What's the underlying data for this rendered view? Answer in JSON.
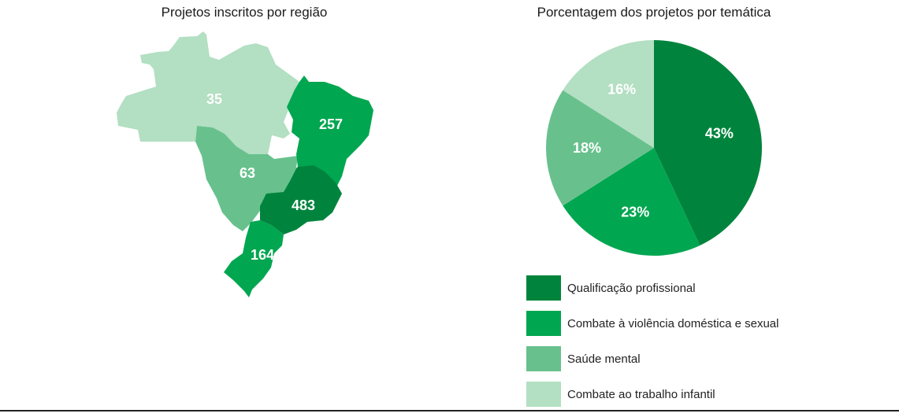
{
  "map": {
    "title": "Projetos inscritos por região",
    "regions": [
      {
        "name": "Norte",
        "value": "35",
        "color": "#b3dfc2"
      },
      {
        "name": "Nordeste",
        "value": "257",
        "color": "#00a650"
      },
      {
        "name": "Centro-Oeste",
        "value": "63",
        "color": "#68c18d"
      },
      {
        "name": "Sudeste",
        "value": "483",
        "color": "#00843d"
      },
      {
        "name": "Sul",
        "value": "164",
        "color": "#00a650"
      }
    ]
  },
  "chart_data": {
    "type": "pie",
    "title": "Porcentagem dos projetos por temática",
    "categories": [
      "Qualificação profissional",
      "Combate à violência doméstica e sexual",
      "Saúde mental",
      "Combate ao trabalho infantil"
    ],
    "values": [
      43,
      23,
      18,
      16
    ],
    "labels": [
      "43%",
      "23%",
      "18%",
      "16%"
    ],
    "colors": [
      "#00843d",
      "#00a650",
      "#68c18d",
      "#b3dfc2"
    ],
    "legend_position": "bottom"
  }
}
